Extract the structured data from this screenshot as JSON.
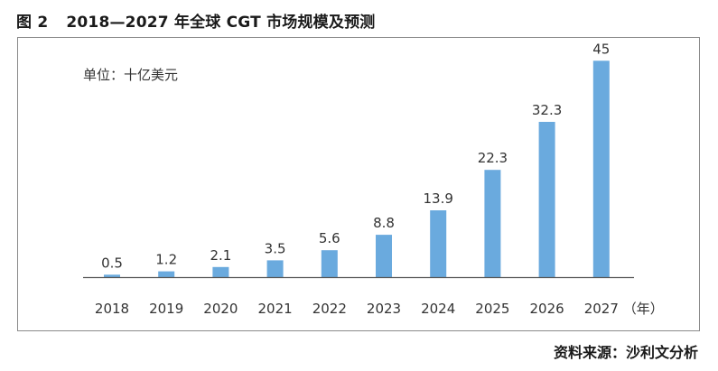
{
  "figure": {
    "number": "图 2",
    "title": "2018—2027 年全球 CGT 市场规模及预测",
    "source": "资料来源：沙利文分析"
  },
  "chart_data": {
    "type": "bar",
    "unit_note": "单位：十亿美元",
    "categories": [
      "2018",
      "2019",
      "2020",
      "2021",
      "2022",
      "2023",
      "2024",
      "2025",
      "2026",
      "2027"
    ],
    "values": [
      0.5,
      1.2,
      2.1,
      3.5,
      5.6,
      8.8,
      13.9,
      22.3,
      32.3,
      45
    ],
    "data_labels": [
      "0.5",
      "1.2",
      "2.1",
      "3.5",
      "5.6",
      "8.8",
      "13.9",
      "22.3",
      "32.3",
      "45"
    ],
    "x_unit": "（年）",
    "ylim": [
      0,
      46
    ],
    "grid": false,
    "legend": "none",
    "bar_color": "#6aaade",
    "axis_color": "#555555"
  }
}
